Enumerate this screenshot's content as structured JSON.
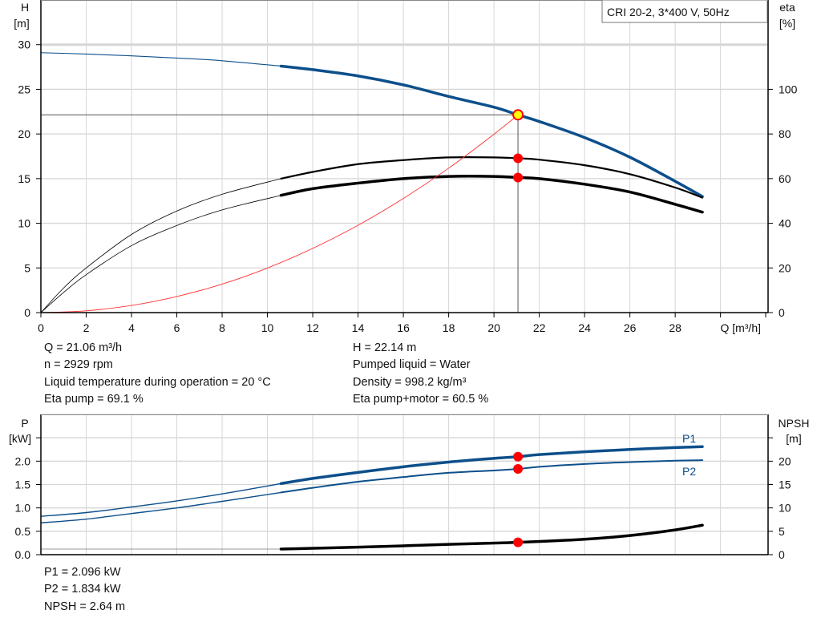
{
  "title_box": "CRI 20-2, 3*400 V, 50Hz",
  "info_left": [
    "Q = 21.06 m³/h",
    "n = 2929 rpm",
    "Liquid temperature during operation = 20 °C",
    "Eta pump = 69.1 %"
  ],
  "info_right": [
    "H = 22.14 m",
    "Pumped liquid = Water",
    "Density = 998.2 kg/m³",
    "Eta pump+motor = 60.5 %"
  ],
  "info_bottom": [
    "P1 = 2.096 kW",
    "P2 = 1.834 kW",
    "NPSH = 2.64 m"
  ],
  "chart_data": [
    {
      "type": "line",
      "xlabel": "Q [m³/h]",
      "ylabel_left": [
        "H",
        "[m]"
      ],
      "ylabel_right": [
        "eta",
        "[%]"
      ],
      "x_ticks": [
        0,
        2,
        4,
        6,
        8,
        10,
        12,
        14,
        16,
        18,
        20,
        22,
        24,
        26,
        28
      ],
      "y_left_ticks": [
        0,
        5,
        10,
        15,
        20,
        25,
        30
      ],
      "y_right_ticks": [
        0,
        20,
        40,
        60,
        80,
        100
      ],
      "xlim": [
        0,
        32.1
      ],
      "ylim_left": [
        0,
        35
      ],
      "ylim_right": [
        0,
        140
      ],
      "grid": true,
      "thick_from_q": 10.6,
      "duty_point": {
        "Q": 21.06,
        "H": 22.14,
        "eta_pump": 69.1,
        "eta_pump_motor": 60.5
      },
      "series": [
        {
          "id": "H",
          "axis": "left",
          "color": "#0d4f8b",
          "x": [
            0,
            2,
            4,
            6,
            8,
            10.6,
            12,
            14,
            16,
            18,
            20,
            21.06,
            22,
            24,
            26,
            28,
            29.2
          ],
          "y": [
            29.1,
            28.95,
            28.75,
            28.5,
            28.2,
            27.6,
            27.2,
            26.5,
            25.5,
            24.2,
            23.0,
            22.14,
            21.4,
            19.6,
            17.4,
            14.7,
            13.0
          ]
        },
        {
          "id": "eta_pump",
          "axis": "right",
          "color": "#000000",
          "x": [
            0,
            1,
            2,
            4,
            6,
            8,
            10.6,
            12,
            14,
            16,
            18,
            20,
            21.06,
            22,
            24,
            26,
            28,
            29.2
          ],
          "y": [
            0,
            11,
            20,
            35,
            45.5,
            53,
            60,
            63,
            66.5,
            68.3,
            69.5,
            69.5,
            69.1,
            68.5,
            66,
            62,
            56,
            51.5
          ]
        },
        {
          "id": "eta_pump_motor",
          "axis": "right",
          "color": "#000000",
          "x": [
            0,
            1,
            2,
            4,
            6,
            8,
            10.6,
            12,
            14,
            16,
            18,
            20,
            21.06,
            22,
            24,
            26,
            28,
            29.2
          ],
          "y": [
            0,
            9,
            17,
            30,
            39,
            46,
            52.5,
            55.5,
            58,
            60,
            61,
            61,
            60.5,
            60,
            57.5,
            54,
            48.5,
            45
          ]
        },
        {
          "id": "system",
          "axis": "left",
          "color": "#ff3030",
          "x": [
            0,
            2,
            4,
            6,
            8,
            10,
            12,
            14,
            16,
            18,
            20,
            21.06
          ],
          "y": [
            0,
            0.2,
            0.8,
            1.8,
            3.19,
            4.99,
            7.19,
            9.78,
            12.78,
            16.17,
            19.97,
            22.14
          ]
        }
      ]
    },
    {
      "type": "line",
      "ylabel_left": [
        "P",
        "[kW]"
      ],
      "ylabel_right": [
        "NPSH",
        "[m]"
      ],
      "y_left_ticks": [
        0.0,
        0.5,
        1.0,
        1.5,
        2.0
      ],
      "y_left_tick_labels": [
        "0.0",
        "0.5",
        "1.0",
        "1.5",
        "2.0"
      ],
      "y_right_ticks": [
        0,
        5,
        10,
        15,
        20
      ],
      "xlim": [
        0,
        32.1
      ],
      "ylim_left": [
        0,
        3.0
      ],
      "ylim_right": [
        0,
        30
      ],
      "grid": true,
      "thick_from_q": 10.6,
      "duty_point": {
        "Q": 21.06,
        "P1": 2.096,
        "P2": 1.834,
        "NPSH": 2.64
      },
      "series": [
        {
          "id": "P1",
          "name": "P1",
          "axis": "left",
          "color": "#0d4f8b",
          "x": [
            0,
            2,
            4,
            6,
            8,
            10.6,
            12,
            14,
            16,
            18,
            20,
            21.06,
            22,
            24,
            26,
            28,
            29.2
          ],
          "y": [
            0.82,
            0.9,
            1.02,
            1.15,
            1.3,
            1.52,
            1.63,
            1.76,
            1.88,
            1.98,
            2.06,
            2.096,
            2.14,
            2.2,
            2.25,
            2.29,
            2.31
          ]
        },
        {
          "id": "P2",
          "name": "P2",
          "axis": "left",
          "color": "#0d4f8b",
          "x": [
            0,
            2,
            4,
            6,
            8,
            10.6,
            12,
            14,
            16,
            18,
            20,
            21.06,
            22,
            24,
            26,
            28,
            29.2
          ],
          "y": [
            0.68,
            0.76,
            0.88,
            1.0,
            1.14,
            1.33,
            1.43,
            1.56,
            1.66,
            1.75,
            1.8,
            1.834,
            1.88,
            1.94,
            1.98,
            2.01,
            2.02
          ]
        },
        {
          "id": "NPSH",
          "axis": "right",
          "color": "#000000",
          "x": [
            0,
            10.6,
            14,
            18,
            21.06,
            24,
            26,
            28,
            29.2
          ],
          "y": [
            1.2,
            1.2,
            1.6,
            2.2,
            2.64,
            3.3,
            4.1,
            5.3,
            6.3
          ]
        }
      ]
    }
  ]
}
